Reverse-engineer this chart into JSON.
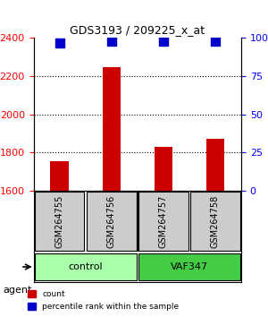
{
  "title": "GDS3193 / 209225_x_at",
  "samples": [
    "GSM264755",
    "GSM264756",
    "GSM264757",
    "GSM264758"
  ],
  "counts": [
    1755,
    2245,
    1830,
    1870
  ],
  "percentile_ranks": [
    97,
    98,
    98,
    98
  ],
  "ylim_left": [
    1600,
    2400
  ],
  "ylim_right": [
    0,
    100
  ],
  "yticks_left": [
    1600,
    1800,
    2000,
    2200,
    2400
  ],
  "yticks_right": [
    0,
    25,
    50,
    75,
    100
  ],
  "bar_color": "#cc0000",
  "dot_color": "#0000cc",
  "groups": [
    {
      "label": "control",
      "samples": [
        0,
        1
      ],
      "color": "#aaffaa"
    },
    {
      "label": "VAF347",
      "samples": [
        2,
        3
      ],
      "color": "#44cc44"
    }
  ],
  "group_row_color": "#aaffaa",
  "group2_row_color": "#44cc44",
  "sample_box_color": "#cccccc",
  "agent_label": "agent",
  "legend_count_label": "count",
  "legend_pct_label": "percentile rank within the sample",
  "bar_width": 0.35,
  "dot_size": 60
}
